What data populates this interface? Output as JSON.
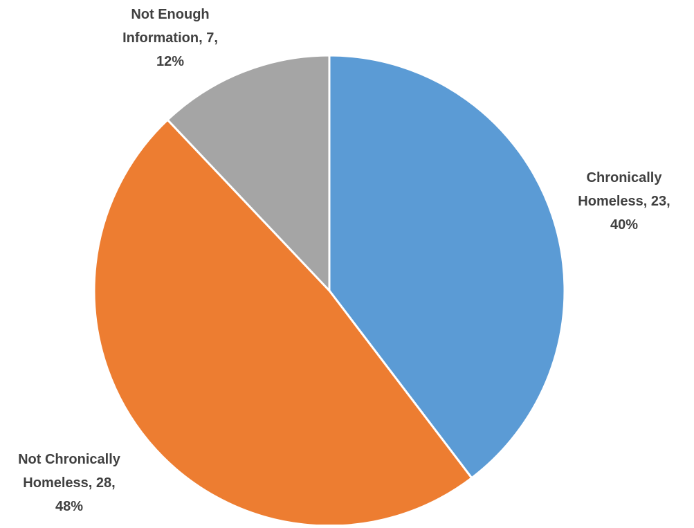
{
  "chart_data": {
    "type": "pie",
    "title": "",
    "slices": [
      {
        "label": "Chronically Homeless",
        "value": 23,
        "percent": "40%",
        "color": "#5B9BD5",
        "label_lines": [
          "Chronically",
          "Homeless, 23,",
          "40%"
        ]
      },
      {
        "label": "Not Chronically Homeless",
        "value": 28,
        "percent": "48%",
        "color": "#ED7D31",
        "label_lines": [
          "Not Chronically",
          "Homeless, 28,",
          "48%"
        ]
      },
      {
        "label": "Not Enough Information",
        "value": 7,
        "percent": "12%",
        "color": "#A5A5A5",
        "label_lines": [
          "Not Enough",
          "Information, 7,",
          "12%"
        ]
      }
    ],
    "start_angle": "12 o'clock",
    "direction": "clockwise",
    "legend": "none",
    "slice_border_color": "#FFFFFF"
  }
}
